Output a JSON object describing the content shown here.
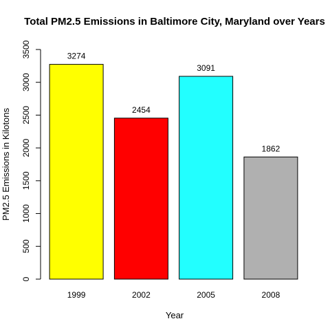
{
  "chart_data": {
    "type": "bar",
    "title": "Total PM2.5 Emissions in Baltimore City, Maryland over Years",
    "xlabel": "Year",
    "ylabel": "PM2.5 Emissions in Kilotons",
    "categories": [
      "1999",
      "2002",
      "2005",
      "2008"
    ],
    "values": [
      3274,
      2454,
      3091,
      1862
    ],
    "value_labels": [
      "3274",
      "2454",
      "3091",
      "1862"
    ],
    "colors": [
      "#ffff00",
      "#ff0000",
      "#22ffff",
      "#b0b0b0"
    ],
    "ylim": [
      0,
      3500
    ],
    "yticks": [
      0,
      500,
      1000,
      1500,
      2000,
      2500,
      3000,
      3500
    ],
    "ytick_labels": [
      "0",
      "500",
      "1000",
      "1500",
      "2000",
      "2500",
      "3000",
      "3500"
    ],
    "grid": false,
    "legend": "none"
  }
}
